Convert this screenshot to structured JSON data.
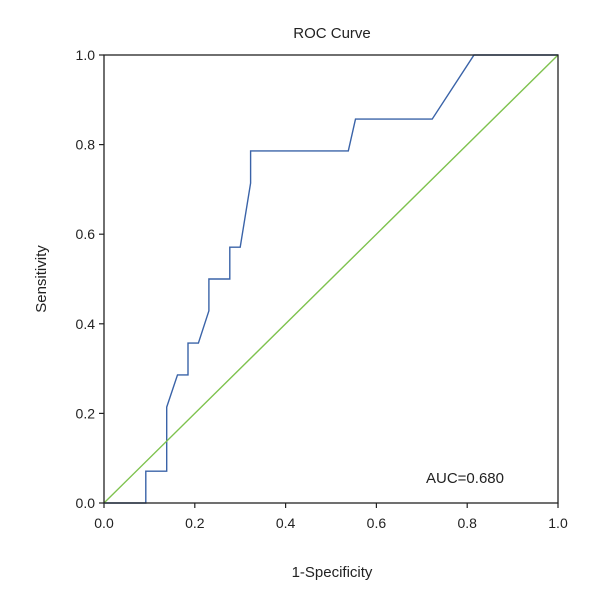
{
  "chart_data": {
    "type": "line",
    "title": "ROC Curve",
    "xlabel": "1-Specificity",
    "ylabel": "Sensitivity",
    "xlim": [
      0.0,
      1.0
    ],
    "ylim": [
      0.0,
      1.0
    ],
    "x_ticks": [
      "0.0",
      "0.2",
      "0.4",
      "0.6",
      "0.8",
      "1.0"
    ],
    "y_ticks": [
      "0.0",
      "0.2",
      "0.4",
      "0.6",
      "0.8",
      "1.0"
    ],
    "grid": false,
    "annotation": "AUC=0.680",
    "series": [
      {
        "color": "#3a63a8",
        "points": [
          [
            0.0,
            0.0
          ],
          [
            0.092,
            0.0
          ],
          [
            0.092,
            0.071
          ],
          [
            0.138,
            0.071
          ],
          [
            0.138,
            0.214
          ],
          [
            0.162,
            0.286
          ],
          [
            0.185,
            0.286
          ],
          [
            0.185,
            0.357
          ],
          [
            0.208,
            0.357
          ],
          [
            0.231,
            0.429
          ],
          [
            0.231,
            0.5
          ],
          [
            0.277,
            0.5
          ],
          [
            0.277,
            0.571
          ],
          [
            0.3,
            0.571
          ],
          [
            0.323,
            0.714
          ],
          [
            0.323,
            0.786
          ],
          [
            0.538,
            0.786
          ],
          [
            0.554,
            0.857
          ],
          [
            0.723,
            0.857
          ],
          [
            0.815,
            1.0
          ],
          [
            1.0,
            1.0
          ]
        ]
      },
      {
        "color": "#7ec24e",
        "points": [
          [
            0.0,
            0.0
          ],
          [
            1.0,
            1.0
          ]
        ]
      }
    ]
  }
}
